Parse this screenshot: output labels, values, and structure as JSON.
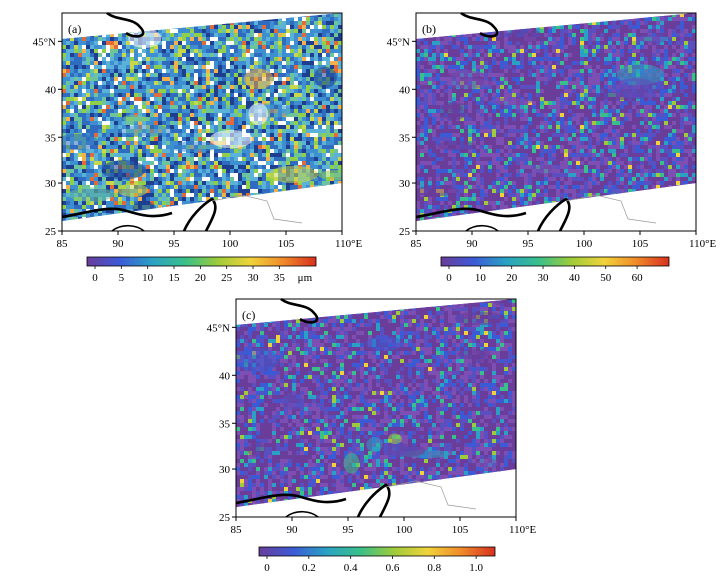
{
  "figure": {
    "panels": [
      {
        "id": "a",
        "label": "(a)",
        "y_tick_labels": [
          "45°N",
          "40",
          "35",
          "30",
          "25"
        ],
        "x_tick_labels": [
          "85",
          "90",
          "95",
          "100",
          "105",
          "110°E"
        ],
        "colorbar": {
          "tick_labels": [
            "0",
            "5",
            "10",
            "15",
            "20",
            "25",
            "30",
            "35"
          ],
          "unit": "μm",
          "colormap": [
            "#6a3d9a",
            "#3b5bd6",
            "#2aa1c4",
            "#38c08a",
            "#9ecb3a",
            "#f0d33b",
            "#f08a2a",
            "#d7301f"
          ]
        },
        "field": {
          "background": "#4aa0d0",
          "palette": [
            "#1e3f8f",
            "#2f6bbf",
            "#3d8fd0",
            "#5ab2d8",
            "#6cc49a",
            "#8fcf4a",
            "#c9d84a",
            "#ffffff",
            "#f4b04a",
            "#e06a3a"
          ],
          "weights": [
            0.12,
            0.18,
            0.2,
            0.14,
            0.1,
            0.08,
            0.04,
            0.08,
            0.03,
            0.03
          ],
          "seed": 11
        }
      },
      {
        "id": "b",
        "label": "(b)",
        "y_tick_labels": [
          "45°N",
          "40",
          "35",
          "30",
          "25"
        ],
        "x_tick_labels": [
          "85",
          "90",
          "95",
          "100",
          "105",
          "110°E"
        ],
        "colorbar": {
          "tick_labels": [
            "0",
            "10",
            "20",
            "30",
            "40",
            "50",
            "60"
          ],
          "unit": "",
          "colormap": [
            "#6a3d9a",
            "#3b5bd6",
            "#2aa1c4",
            "#38c08a",
            "#9ecb3a",
            "#f0d33b",
            "#f08a2a",
            "#d7301f"
          ]
        },
        "field": {
          "background": "#7a52b0",
          "palette": [
            "#6a3d9a",
            "#7d4fb3",
            "#5a4fc0",
            "#3b5bd6",
            "#2aa1c4",
            "#38c08a",
            "#9ecb3a",
            "#f0d33b"
          ],
          "weights": [
            0.36,
            0.22,
            0.14,
            0.12,
            0.08,
            0.05,
            0.02,
            0.01
          ],
          "seed": 23
        }
      },
      {
        "id": "c",
        "label": "(c)",
        "y_tick_labels": [
          "45°N",
          "40",
          "35",
          "30",
          "25"
        ],
        "x_tick_labels": [
          "85",
          "90",
          "95",
          "100",
          "105",
          "110°E"
        ],
        "colorbar": {
          "tick_labels": [
            "0",
            "0.2",
            "0.4",
            "0.6",
            "0.8",
            "1.0"
          ],
          "unit": "",
          "colormap": [
            "#6a3d9a",
            "#3b5bd6",
            "#2aa1c4",
            "#38c08a",
            "#9ecb3a",
            "#f0d33b",
            "#f08a2a",
            "#d7301f"
          ]
        },
        "field": {
          "background": "#7a52b0",
          "palette": [
            "#6a3d9a",
            "#7d4fb3",
            "#5a4fc0",
            "#3b5bd6",
            "#2aa1c4",
            "#38c08a",
            "#9ecb3a",
            "#f0d33b"
          ],
          "weights": [
            0.38,
            0.22,
            0.14,
            0.12,
            0.07,
            0.04,
            0.02,
            0.01
          ],
          "seed": 37
        }
      }
    ]
  }
}
